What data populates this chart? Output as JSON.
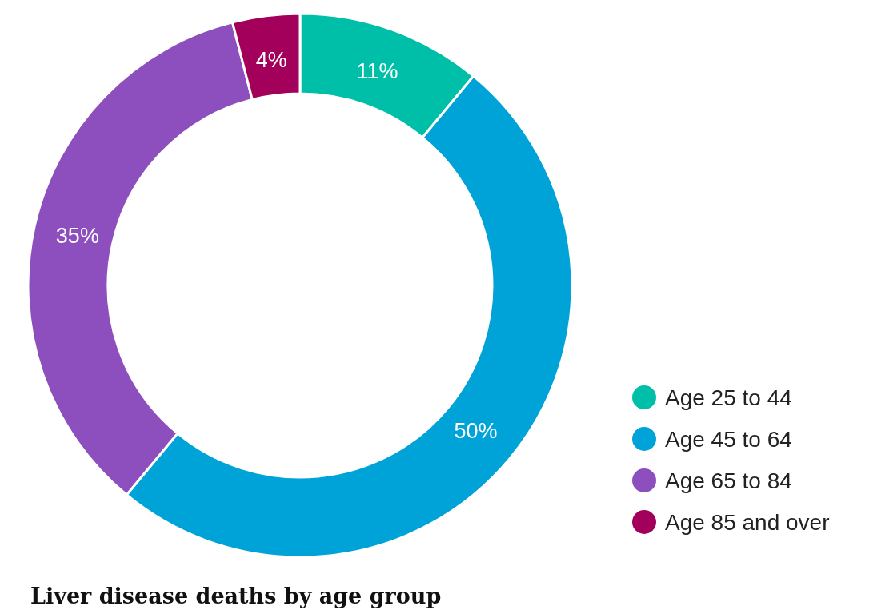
{
  "chart_data": {
    "type": "donut",
    "title": "Liver disease deaths by age group",
    "categories": [
      "Age 25 to 44",
      "Age 45 to 64",
      "Age 65 to 84",
      "Age 85 and over"
    ],
    "values": [
      11,
      50,
      35,
      4
    ],
    "colors": [
      "#00bfa8",
      "#00a3d8",
      "#8c4fbd",
      "#a3005b"
    ],
    "value_labels": [
      "11%",
      "50%",
      "35%",
      "4%"
    ],
    "legend": "bottom right"
  }
}
